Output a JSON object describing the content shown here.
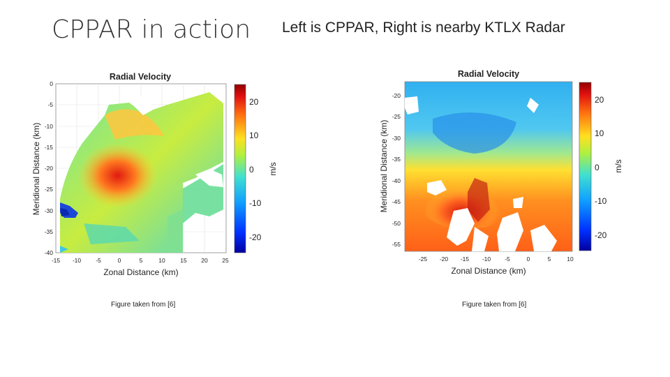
{
  "slide": {
    "title": "CPPAR in action",
    "subtitle": "Left is CPPAR, Right is nearby KTLX Radar"
  },
  "figures": [
    {
      "title": "Radial Velocity",
      "xlabel": "Zonal Distance (km)",
      "ylabel": "Meridional Distance (km)",
      "xticks": [
        "-15",
        "-10",
        "-5",
        "0",
        "5",
        "10",
        "15",
        "20",
        "25"
      ],
      "yticks": [
        "0",
        "-5",
        "-10",
        "-15",
        "-20",
        "-25",
        "-30",
        "-35",
        "-40"
      ],
      "colorbar_label": "m/s",
      "colorbar_ticks": [
        "20",
        "10",
        "0",
        "-10",
        "-20"
      ],
      "caption": "Figure taken from [6]"
    },
    {
      "title": "Radial Velocity",
      "xlabel": "Zonal Distance (km)",
      "ylabel": "Meridional Distance (km)",
      "xticks": [
        "-25",
        "-20",
        "-15",
        "-10",
        "-5",
        "0",
        "5",
        "10"
      ],
      "yticks": [
        "-20",
        "-25",
        "-30",
        "-35",
        "-40",
        "-45",
        "-50",
        "-55"
      ],
      "colorbar_label": "m/s",
      "colorbar_ticks": [
        "20",
        "10",
        "0",
        "-10",
        "-20"
      ],
      "caption": "Figure taken from [6]"
    }
  ]
}
